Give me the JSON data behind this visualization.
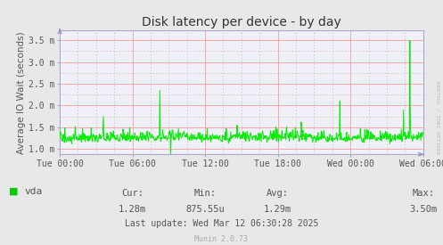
{
  "title": "Disk latency per device - by day",
  "ylabel": "Average IO Wait (seconds)",
  "bg_color": "#E8E8E8",
  "plot_bg_color": "#F0F0F8",
  "grid_color_major": "#FF9999",
  "grid_color_minor": "#DDAAAA",
  "line_color": "#00EE00",
  "line_width": 0.7,
  "ylim": [
    0.00088,
    0.00372
  ],
  "yticks": [
    0.001,
    0.0015,
    0.002,
    0.0025,
    0.003,
    0.0035
  ],
  "ytick_labels": [
    "1.0 m",
    "1.5 m",
    "2.0 m",
    "2.5 m",
    "3.0 m",
    "3.5 m"
  ],
  "xtick_labels": [
    "Tue 00:00",
    "Tue 06:00",
    "Tue 12:00",
    "Tue 18:00",
    "Wed 00:00",
    "Wed 06:00"
  ],
  "legend_label": "vda",
  "legend_color": "#00CC00",
  "cur_val": "1.28m",
  "min_val": "875.55u",
  "avg_val": "1.29m",
  "max_val": "3.50m",
  "last_update": "Last update: Wed Mar 12 06:30:28 2025",
  "munin_version": "Munin 2.0.73",
  "rrdtool_label": "RRDTOOL / TOBI OETIKER",
  "spine_color": "#AAAACC",
  "arrow_color": "#9999BB",
  "title_color": "#333333",
  "text_color": "#555555",
  "seed": 42,
  "n_points": 800
}
